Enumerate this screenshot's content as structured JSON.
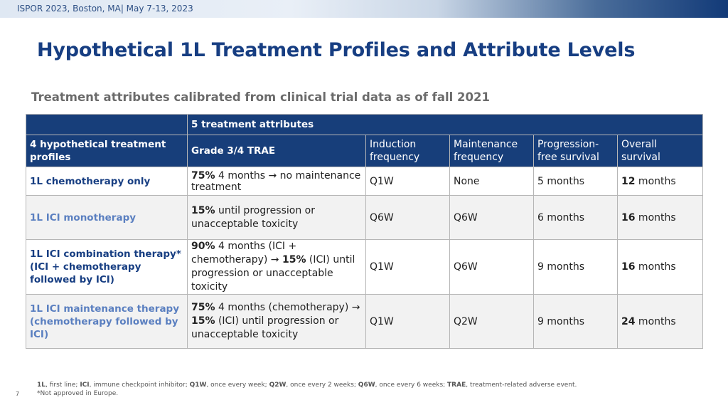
{
  "header": {
    "conference": "ISPOR 2023, Boston, MA| May 7-13, 2023",
    "title": "Hypothetical 1L Treatment Profiles and Attribute Levels",
    "subtitle": "Treatment attributes calibrated from clinical trial data as of fall 2021"
  },
  "table": {
    "group_header": "5 treatment attributes",
    "profiles_header": "4 hypothetical treatment profiles",
    "columns": [
      "Grade 3/4 TRAE",
      "Induction frequency",
      "Maintenance frequency",
      "Progression-free survival",
      "Overall survival"
    ],
    "rows": [
      {
        "profile": "1L chemotherapy only",
        "trae_bold": "75%",
        "trae_text": " 4 months → no maintenance treatment",
        "induction": "Q1W",
        "maintenance": "None",
        "pfs": "5 months",
        "os_bold": "12",
        "os_text": " months"
      },
      {
        "profile": "1L ICI monotherapy",
        "trae_bold": "15%",
        "trae_text": " until progression or unacceptable toxicity",
        "induction": "Q6W",
        "maintenance": "Q6W",
        "pfs": "6 months",
        "os_bold": "16",
        "os_text": " months"
      },
      {
        "profile": "1L ICI combination therapy* (ICI + chemotherapy followed by ICI)",
        "trae_bold": "90%",
        "trae_text": " 4 months (ICI + chemotherapy) → ",
        "trae_bold2": "15%",
        "trae_text2": " (ICI) until progression or unacceptable toxicity",
        "induction": "Q1W",
        "maintenance": "Q6W",
        "pfs": "9 months",
        "os_bold": "16",
        "os_text": " months"
      },
      {
        "profile": "1L ICI maintenance therapy (chemotherapy followed by ICI)",
        "trae_bold": "75%",
        "trae_text": " 4 months (chemotherapy) → ",
        "trae_bold2": "15%",
        "trae_text2": " (ICI) until progression or unacceptable toxicity",
        "induction": "Q1W",
        "maintenance": "Q2W",
        "pfs": "9 months",
        "os_bold": "24",
        "os_text": " months"
      }
    ]
  },
  "footer": {
    "abbreviations": [
      {
        "term": "1L",
        "def": ", first line; "
      },
      {
        "term": "ICI",
        "def": ", immune checkpoint inhibitor; "
      },
      {
        "term": "Q1W",
        "def": ", once every week; "
      },
      {
        "term": "Q2W",
        "def": ", once every 2 weeks; "
      },
      {
        "term": "Q6W",
        "def": ", once every 6 weeks; "
      },
      {
        "term": "TRAE",
        "def": ", treatment-related adverse event."
      }
    ],
    "note": "*Not approved in Europe.",
    "page_number": "7"
  }
}
